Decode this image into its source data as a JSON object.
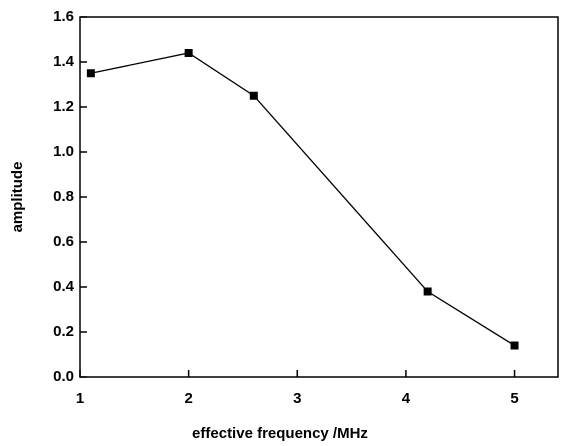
{
  "chart_data": {
    "type": "line",
    "x_label": "effective frequency /MHz",
    "y_label": "amplitude",
    "x": [
      1.1,
      2.0,
      2.6,
      4.2,
      5.0
    ],
    "series": [
      {
        "color": "#000000",
        "values": [
          1.35,
          1.44,
          1.25,
          0.38,
          0.14
        ]
      }
    ],
    "xlim": [
      1,
      5.4
    ],
    "xticks": [
      1,
      2,
      3,
      4,
      5
    ],
    "ylim": [
      0,
      1.6
    ],
    "yticks": [
      {
        "value": 0,
        "label": "0.0"
      },
      0.2,
      0.4,
      0.6,
      0.8,
      {
        "value": 1,
        "label": "1.0"
      },
      1.2,
      1.4,
      1.6
    ]
  }
}
